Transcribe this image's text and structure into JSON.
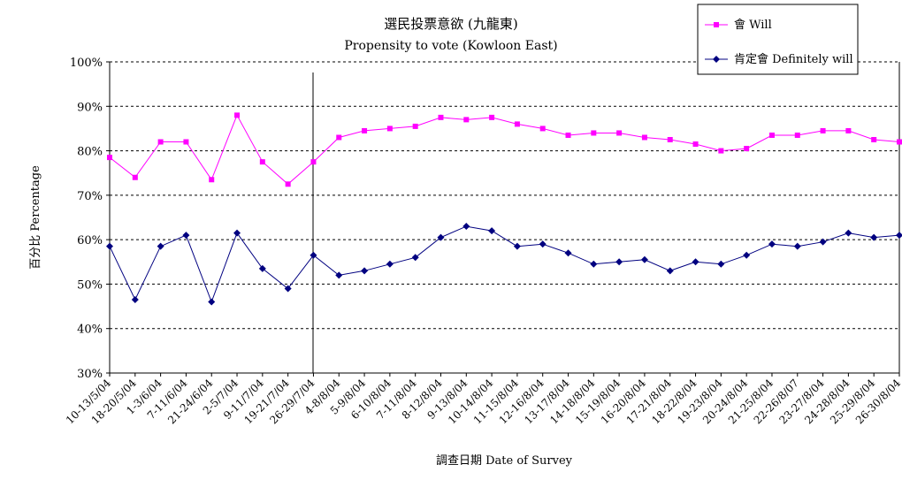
{
  "chart_data": {
    "type": "line",
    "title": "選民投票意欲 (九龍東)",
    "subtitle": "Propensity to vote (Kowloon East)",
    "xlabel": "調查日期 Date of Survey",
    "ylabel": "百分比 Percentage",
    "ylim": [
      30,
      100
    ],
    "yticks": [
      "30%",
      "40%",
      "50%",
      "60%",
      "70%",
      "80%",
      "90%",
      "100%"
    ],
    "grid": true,
    "legend_position": "top-right",
    "categories": [
      "10-13/5/04",
      "18-20/5/04",
      "1-3/6/04",
      "7-11/6/04",
      "21-24/6/04",
      "2-5/7/04",
      "9-11/7/04",
      "19-21/7/04",
      "26-29/7/04",
      "4-8/8/04",
      "5-9/8/04",
      "6-10/8/04",
      "7-11/8/04",
      "8-12/8/04",
      "9-13/8/04",
      "10-14/8/04",
      "11-15/8/04",
      "12-16/8/04",
      "13-17/8/04",
      "14-18/8/04",
      "15-19/8/04",
      "16-20/8/04",
      "17-21/8/04",
      "18-22/8/04",
      "19-23/8/04",
      "20-24/8/04",
      "21-25/8/04",
      "22-26/8/07",
      "23-27/8/04",
      "24-28/8/04",
      "25-29/8/04",
      "26-30/8/04"
    ],
    "series": [
      {
        "name": "會 Will",
        "color": "#ff00ff",
        "marker": "square",
        "values": [
          78.5,
          74,
          82,
          82,
          73.5,
          88,
          77.5,
          72.5,
          77.5,
          83,
          84.5,
          85,
          85.5,
          87.5,
          87,
          87.5,
          86,
          85,
          83.5,
          84,
          84,
          83,
          82.5,
          81.5,
          80,
          80.5,
          83.5,
          83.5,
          84.5,
          84.5,
          82.5,
          82
        ]
      },
      {
        "name": "肯定會 Definitely will",
        "color": "#000080",
        "marker": "diamond",
        "values": [
          58.5,
          46.5,
          58.5,
          61,
          46,
          61.5,
          53.5,
          49,
          56.5,
          52,
          53,
          54.5,
          56,
          60.5,
          63,
          62,
          58.5,
          59,
          57,
          54.5,
          55,
          55.5,
          53,
          55,
          54.5,
          56.5,
          59,
          58.5,
          59.5,
          61.5,
          60.5,
          61
        ]
      }
    ]
  }
}
